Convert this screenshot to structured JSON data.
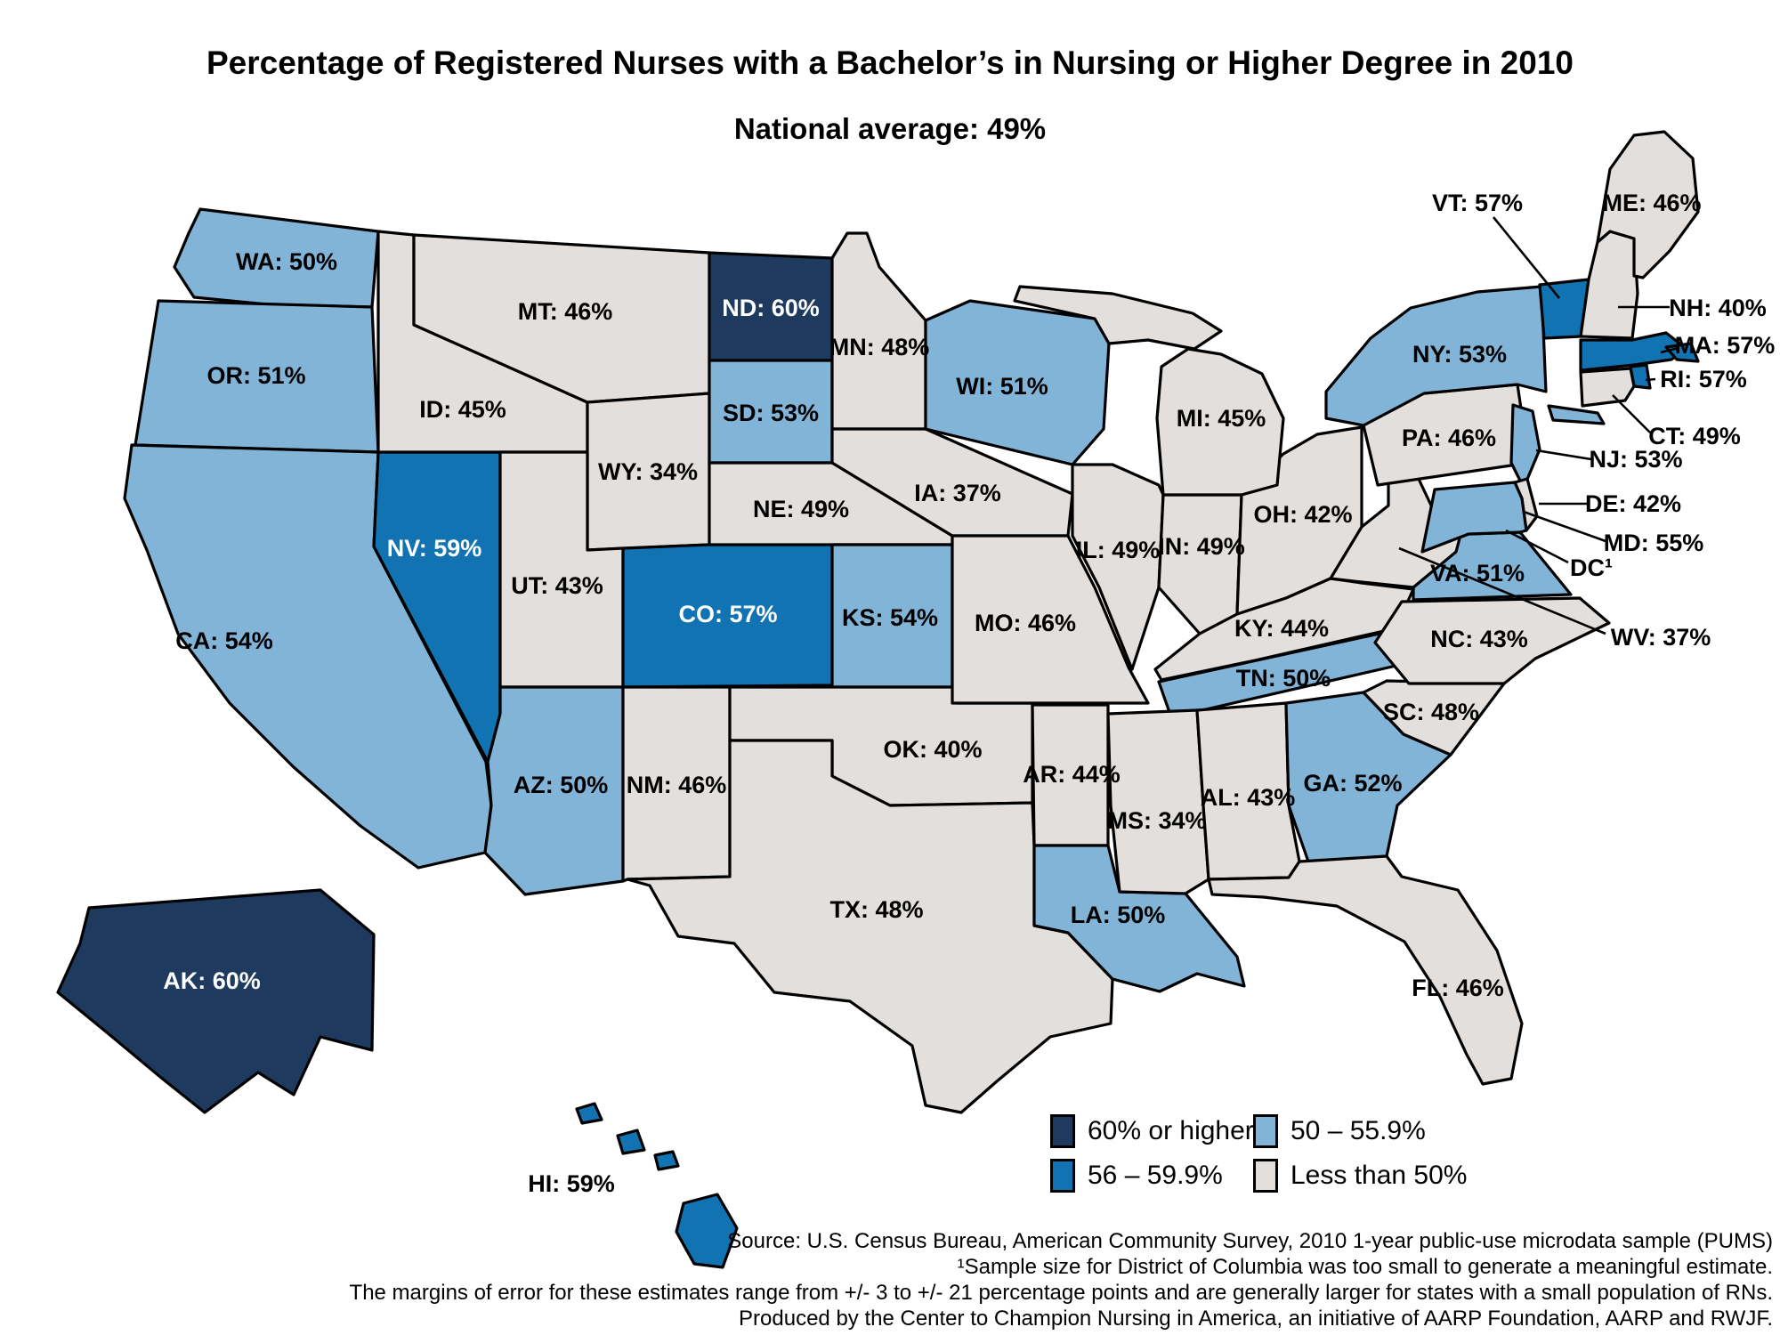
{
  "title": "Percentage of Registered Nurses with a Bachelor’s in Nursing or Higher Degree in 2010",
  "subtitle": "National average: 49%",
  "colors": {
    "60plus": "#1E3A5E",
    "56to59": "#1173B2",
    "50to55": "#82B4D8",
    "under50": "#E2DFDC",
    "border": "#000000",
    "background": "#FFFFFF"
  },
  "legend": {
    "items": [
      {
        "category": "60plus",
        "label": "60% or higher"
      },
      {
        "category": "56to59",
        "label": "56 – 59.9%"
      },
      {
        "category": "50to55",
        "label": "50 – 55.9%"
      },
      {
        "category": "under50",
        "label": "Less than 50%"
      }
    ]
  },
  "chart_data": {
    "type": "choropleth_map",
    "region": "United States",
    "title": "Percentage of Registered Nurses with a Bachelor’s in Nursing or Higher Degree in 2010",
    "national_average_percent": 49,
    "unit": "percent",
    "legend_buckets": [
      "60% or higher",
      "56 – 59.9%",
      "50 – 55.9%",
      "Less than 50%"
    ],
    "states": [
      {
        "code": "WA",
        "label": "WA: 50%",
        "value": 50,
        "category": "50to55"
      },
      {
        "code": "OR",
        "label": "OR: 51%",
        "value": 51,
        "category": "50to55"
      },
      {
        "code": "CA",
        "label": "CA: 54%",
        "value": 54,
        "category": "50to55"
      },
      {
        "code": "NV",
        "label": "NV: 59%",
        "value": 59,
        "category": "56to59"
      },
      {
        "code": "ID",
        "label": "ID: 45%",
        "value": 45,
        "category": "under50"
      },
      {
        "code": "MT",
        "label": "MT: 46%",
        "value": 46,
        "category": "under50"
      },
      {
        "code": "WY",
        "label": "WY: 34%",
        "value": 34,
        "category": "under50"
      },
      {
        "code": "UT",
        "label": "UT: 43%",
        "value": 43,
        "category": "under50"
      },
      {
        "code": "CO",
        "label": "CO: 57%",
        "value": 57,
        "category": "56to59"
      },
      {
        "code": "AZ",
        "label": "AZ: 50%",
        "value": 50,
        "category": "50to55"
      },
      {
        "code": "NM",
        "label": "NM: 46%",
        "value": 46,
        "category": "under50"
      },
      {
        "code": "ND",
        "label": "ND: 60%",
        "value": 60,
        "category": "60plus"
      },
      {
        "code": "SD",
        "label": "SD: 53%",
        "value": 53,
        "category": "50to55"
      },
      {
        "code": "NE",
        "label": "NE: 49%",
        "value": 49,
        "category": "under50"
      },
      {
        "code": "KS",
        "label": "KS: 54%",
        "value": 54,
        "category": "50to55"
      },
      {
        "code": "OK",
        "label": "OK: 40%",
        "value": 40,
        "category": "under50"
      },
      {
        "code": "TX",
        "label": "TX: 48%",
        "value": 48,
        "category": "under50"
      },
      {
        "code": "MN",
        "label": "MN: 48%",
        "value": 48,
        "category": "under50"
      },
      {
        "code": "IA",
        "label": "IA: 37%",
        "value": 37,
        "category": "under50"
      },
      {
        "code": "MO",
        "label": "MO: 46%",
        "value": 46,
        "category": "under50"
      },
      {
        "code": "AR",
        "label": "AR: 44%",
        "value": 44,
        "category": "under50"
      },
      {
        "code": "LA",
        "label": "LA: 50%",
        "value": 50,
        "category": "50to55"
      },
      {
        "code": "WI",
        "label": "WI: 51%",
        "value": 51,
        "category": "50to55"
      },
      {
        "code": "IL",
        "label": "IL: 49%",
        "value": 49,
        "category": "under50"
      },
      {
        "code": "IN",
        "label": "IN: 49%",
        "value": 49,
        "category": "under50"
      },
      {
        "code": "OH",
        "label": "OH: 42%",
        "value": 42,
        "category": "under50"
      },
      {
        "code": "MI",
        "label": "MI: 45%",
        "value": 45,
        "category": "under50"
      },
      {
        "code": "KY",
        "label": "KY: 44%",
        "value": 44,
        "category": "under50"
      },
      {
        "code": "TN",
        "label": "TN: 50%",
        "value": 50,
        "category": "50to55"
      },
      {
        "code": "MS",
        "label": "MS: 34%",
        "value": 34,
        "category": "under50"
      },
      {
        "code": "AL",
        "label": "AL: 43%",
        "value": 43,
        "category": "under50"
      },
      {
        "code": "GA",
        "label": "GA: 52%",
        "value": 52,
        "category": "50to55"
      },
      {
        "code": "FL",
        "label": "FL: 46%",
        "value": 46,
        "category": "under50"
      },
      {
        "code": "SC",
        "label": "SC: 48%",
        "value": 48,
        "category": "under50"
      },
      {
        "code": "NC",
        "label": "NC: 43%",
        "value": 43,
        "category": "under50"
      },
      {
        "code": "VA",
        "label": "VA: 51%",
        "value": 51,
        "category": "50to55"
      },
      {
        "code": "WV",
        "label": "WV: 37%",
        "value": 37,
        "category": "under50"
      },
      {
        "code": "PA",
        "label": "PA: 46%",
        "value": 46,
        "category": "under50"
      },
      {
        "code": "NY",
        "label": "NY: 53%",
        "value": 53,
        "category": "50to55"
      },
      {
        "code": "NJ",
        "label": "NJ: 53%",
        "value": 53,
        "category": "50to55"
      },
      {
        "code": "DE",
        "label": "DE: 42%",
        "value": 42,
        "category": "under50"
      },
      {
        "code": "MD",
        "label": "MD: 55%",
        "value": 55,
        "category": "50to55"
      },
      {
        "code": "VT",
        "label": "VT: 57%",
        "value": 57,
        "category": "56to59"
      },
      {
        "code": "NH",
        "label": "NH: 40%",
        "value": 40,
        "category": "under50"
      },
      {
        "code": "ME",
        "label": "ME: 46%",
        "value": 46,
        "category": "under50"
      },
      {
        "code": "MA",
        "label": "MA: 57%",
        "value": 57,
        "category": "56to59"
      },
      {
        "code": "RI",
        "label": "RI: 57%",
        "value": 57,
        "category": "56to59"
      },
      {
        "code": "CT",
        "label": "CT: 49%",
        "value": 49,
        "category": "under50"
      },
      {
        "code": "AK",
        "label": "AK: 60%",
        "value": 60,
        "category": "60plus"
      },
      {
        "code": "HI",
        "label": "HI: 59%",
        "value": 59,
        "category": "56to59"
      },
      {
        "code": "DC",
        "label": "DC¹",
        "value": null,
        "category": null
      }
    ]
  },
  "source_lines": [
    "Source: U.S. Census Bureau, American Community Survey, 2010 1-year public-use microdata sample (PUMS)",
    "¹Sample size for District of Columbia was too small to generate a meaningful estimate.",
    "The margins of error for these estimates range from +/- 3 to +/- 21 percentage points and are generally larger for states with a small population of RNs.",
    "Produced by the Center to Champion Nursing in America, an initiative of AARP Foundation, AARP and RWJF."
  ]
}
